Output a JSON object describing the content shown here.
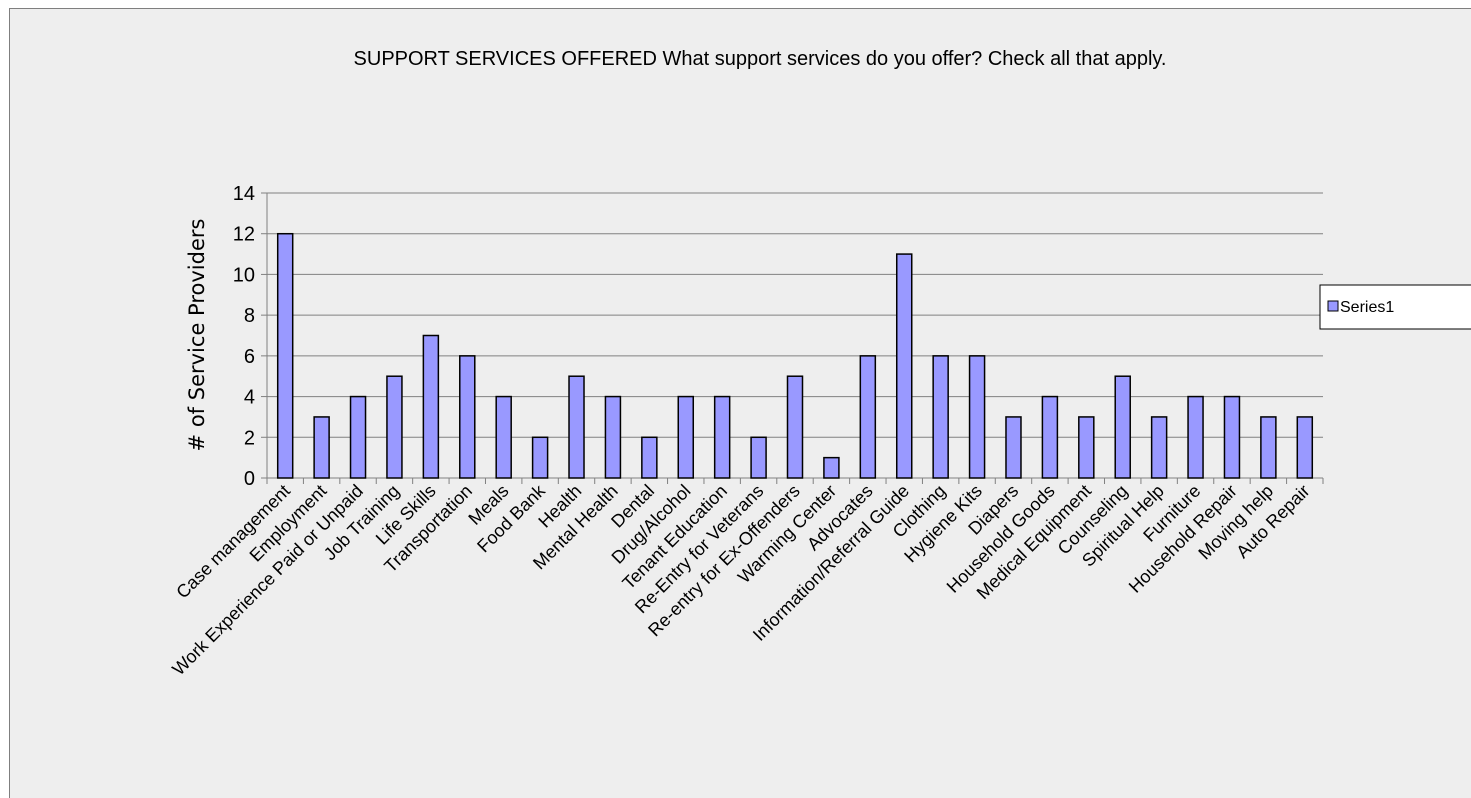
{
  "chart_data": {
    "type": "bar",
    "title": "SUPPORT SERVICES OFFERED What support services do you offer?  Check all that apply.",
    "ylabel": "# of Service Providers",
    "xlabel": "",
    "ylim": [
      0,
      14
    ],
    "yticks": [
      0,
      2,
      4,
      6,
      8,
      10,
      12,
      14
    ],
    "grid": true,
    "legend_position": "right",
    "bar_color": "#9999ff",
    "bar_border_color": "#000000",
    "categories": [
      "Case management",
      "Employment",
      "Work Experience Paid or Unpaid",
      "Job Training",
      "Life  Skills",
      "Transportation",
      "Meals",
      "Food Bank",
      "Health",
      "Mental Health",
      "Dental",
      "Drug/Alcohol",
      "Tenant Education",
      "Re-Entry for Veterans",
      "Re-entry for Ex-Offenders",
      "Warming Center",
      "Advocates",
      "Information/Referral Guide",
      "Clothing",
      "Hygiene Kits",
      "Diapers",
      "Household Goods",
      "Medical Equipment",
      "Counseling",
      "Spiritual Help",
      "Furniture",
      "Household Repair",
      "Moving help",
      "Auto Repair"
    ],
    "series": [
      {
        "name": "Series1",
        "values": [
          12,
          3,
          4,
          5,
          7,
          6,
          4,
          2,
          5,
          4,
          2,
          4,
          4,
          2,
          5,
          1,
          6,
          11,
          6,
          6,
          3,
          4,
          3,
          5,
          3,
          4,
          4,
          3,
          3
        ]
      }
    ]
  }
}
